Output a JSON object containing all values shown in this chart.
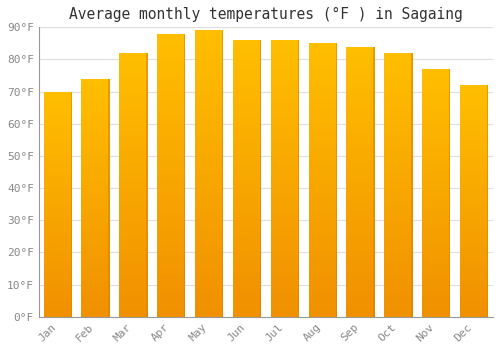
{
  "months": [
    "Jan",
    "Feb",
    "Mar",
    "Apr",
    "May",
    "Jun",
    "Jul",
    "Aug",
    "Sep",
    "Oct",
    "Nov",
    "Dec"
  ],
  "values": [
    70,
    74,
    82,
    88,
    89,
    86,
    86,
    85,
    84,
    82,
    77,
    72
  ],
  "bar_color_top": "#FFBE00",
  "bar_color_bottom": "#F09000",
  "bar_right_edge": "#E08000",
  "title": "Average monthly temperatures (°F ) in Sagaing",
  "ylim": [
    0,
    90
  ],
  "yticks": [
    0,
    10,
    20,
    30,
    40,
    50,
    60,
    70,
    80,
    90
  ],
  "ytick_labels": [
    "0°F",
    "10°F",
    "20°F",
    "30°F",
    "40°F",
    "50°F",
    "60°F",
    "70°F",
    "80°F",
    "90°F"
  ],
  "background_color": "#FFFFFF",
  "grid_color": "#DDDDDD",
  "title_fontsize": 10.5,
  "tick_fontsize": 8,
  "tick_color": "#888888",
  "bar_width": 0.75
}
